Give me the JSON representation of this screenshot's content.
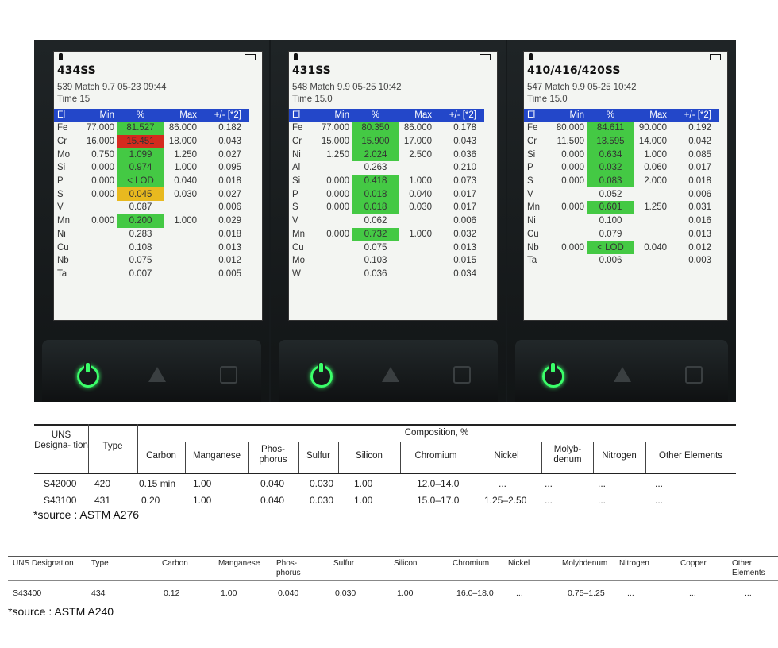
{
  "panels": [
    {
      "alloy": "434SS",
      "match": "539  Match   9.7 05-23 09:44",
      "time": "Time 15",
      "headers": [
        "El",
        "Min",
        "%",
        "Max",
        "+/- [*2]"
      ],
      "rows": [
        {
          "el": "Fe",
          "min": "77.000",
          "pct": "81.527",
          "max": "86.000",
          "err": "0.182",
          "hl": "green"
        },
        {
          "el": "Cr",
          "min": "16.000",
          "pct": "15.451",
          "max": "18.000",
          "err": "0.043",
          "hl": "red"
        },
        {
          "el": "Mo",
          "min": "0.750",
          "pct": "1.099",
          "max": "1.250",
          "err": "0.027",
          "hl": "green"
        },
        {
          "el": "Si",
          "min": "0.000",
          "pct": "0.974",
          "max": "1.000",
          "err": "0.095",
          "hl": "green"
        },
        {
          "el": "P",
          "min": "0.000",
          "pct": "< LOD",
          "max": "0.040",
          "err": "0.018",
          "hl": "green"
        },
        {
          "el": "S",
          "min": "0.000",
          "pct": "0.045",
          "max": "0.030",
          "err": "0.027",
          "hl": "yellow"
        },
        {
          "el": "V",
          "min": "",
          "pct": "0.087",
          "max": "",
          "err": "0.006",
          "hl": ""
        },
        {
          "el": "Mn",
          "min": "0.000",
          "pct": "0.200",
          "max": "1.000",
          "err": "0.029",
          "hl": "green"
        },
        {
          "el": "Ni",
          "min": "",
          "pct": "0.283",
          "max": "",
          "err": "0.018",
          "hl": ""
        },
        {
          "el": "Cu",
          "min": "",
          "pct": "0.108",
          "max": "",
          "err": "0.013",
          "hl": ""
        },
        {
          "el": "Nb",
          "min": "",
          "pct": "0.075",
          "max": "",
          "err": "0.012",
          "hl": ""
        },
        {
          "el": "Ta",
          "min": "",
          "pct": "0.007",
          "max": "",
          "err": "0.005",
          "hl": ""
        }
      ]
    },
    {
      "alloy": "431SS",
      "match": "548  Match   9.9 05-25 10:42",
      "time": "Time 15.0",
      "headers": [
        "El",
        "Min",
        "%",
        "Max",
        "+/- [*2]"
      ],
      "rows": [
        {
          "el": "Fe",
          "min": "77.000",
          "pct": "80.350",
          "max": "86.000",
          "err": "0.178",
          "hl": "green"
        },
        {
          "el": "Cr",
          "min": "15.000",
          "pct": "15.900",
          "max": "17.000",
          "err": "0.043",
          "hl": "green"
        },
        {
          "el": "Ni",
          "min": "1.250",
          "pct": "2.024",
          "max": "2.500",
          "err": "0.036",
          "hl": "green"
        },
        {
          "el": "Al",
          "min": "",
          "pct": "0.263",
          "max": "",
          "err": "0.210",
          "hl": ""
        },
        {
          "el": "Si",
          "min": "0.000",
          "pct": "0.418",
          "max": "1.000",
          "err": "0.073",
          "hl": "green"
        },
        {
          "el": "P",
          "min": "0.000",
          "pct": "0.018",
          "max": "0.040",
          "err": "0.017",
          "hl": "green"
        },
        {
          "el": "S",
          "min": "0.000",
          "pct": "0.018",
          "max": "0.030",
          "err": "0.017",
          "hl": "green"
        },
        {
          "el": "V",
          "min": "",
          "pct": "0.062",
          "max": "",
          "err": "0.006",
          "hl": ""
        },
        {
          "el": "Mn",
          "min": "0.000",
          "pct": "0.732",
          "max": "1.000",
          "err": "0.032",
          "hl": "green"
        },
        {
          "el": "Cu",
          "min": "",
          "pct": "0.075",
          "max": "",
          "err": "0.013",
          "hl": ""
        },
        {
          "el": "Mo",
          "min": "",
          "pct": "0.103",
          "max": "",
          "err": "0.015",
          "hl": ""
        },
        {
          "el": "W",
          "min": "",
          "pct": "0.036",
          "max": "",
          "err": "0.034",
          "hl": ""
        }
      ]
    },
    {
      "alloy": "410/416/420SS",
      "match": "547  Match   9.9 05-25 10:42",
      "time": "Time 15.0",
      "headers": [
        "El",
        "Min",
        "%",
        "Max",
        "+/- [*2]"
      ],
      "rows": [
        {
          "el": "Fe",
          "min": "80.000",
          "pct": "84.611",
          "max": "90.000",
          "err": "0.192",
          "hl": "green"
        },
        {
          "el": "Cr",
          "min": "11.500",
          "pct": "13.595",
          "max": "14.000",
          "err": "0.042",
          "hl": "green"
        },
        {
          "el": "Si",
          "min": "0.000",
          "pct": "0.634",
          "max": "1.000",
          "err": "0.085",
          "hl": "green"
        },
        {
          "el": "P",
          "min": "0.000",
          "pct": "0.032",
          "max": "0.060",
          "err": "0.017",
          "hl": "green"
        },
        {
          "el": "S",
          "min": "0.000",
          "pct": "0.083",
          "max": "2.000",
          "err": "0.018",
          "hl": "green"
        },
        {
          "el": "V",
          "min": "",
          "pct": "0.052",
          "max": "",
          "err": "0.006",
          "hl": ""
        },
        {
          "el": "Mn",
          "min": "0.000",
          "pct": "0.601",
          "max": "1.250",
          "err": "0.031",
          "hl": "green"
        },
        {
          "el": "Ni",
          "min": "",
          "pct": "0.100",
          "max": "",
          "err": "0.016",
          "hl": ""
        },
        {
          "el": "Cu",
          "min": "",
          "pct": "0.079",
          "max": "",
          "err": "0.013",
          "hl": ""
        },
        {
          "el": "Nb",
          "min": "0.000",
          "pct": "< LOD",
          "max": "0.040",
          "err": "0.012",
          "hl": "green"
        },
        {
          "el": "Ta",
          "min": "",
          "pct": "0.006",
          "max": "",
          "err": "0.003",
          "hl": ""
        }
      ]
    }
  ],
  "a276": {
    "h_uns": "UNS Designa- tion",
    "h_type": "Type",
    "h_comp": "Composition, %",
    "cols": [
      "Carbon",
      "Manganese",
      "Phos- phorus",
      "Sulfur",
      "Silicon",
      "Chromium",
      "Nickel",
      "Molyb- denum",
      "Nitrogen",
      "Other Elements"
    ],
    "rows": [
      [
        "S42000",
        "420",
        "0.15 min",
        "1.00",
        "0.040",
        "0.030",
        "1.00",
        "12.0–14.0",
        "...",
        "...",
        "...",
        "..."
      ],
      [
        "S43100",
        "431",
        "0.20",
        "1.00",
        "0.040",
        "0.030",
        "1.00",
        "15.0–17.0",
        "1.25–2.50",
        "...",
        "...",
        "..."
      ]
    ],
    "source": "*source : ASTM A276"
  },
  "a240": {
    "cols": [
      "UNS Designation",
      "Type",
      "Carbon",
      "Manganese",
      "Phos- phorus",
      "Sulfur",
      "Silicon",
      "Chromium",
      "Nickel",
      "Molybdenum",
      "Nitrogen",
      "Copper",
      "Other Elements"
    ],
    "row": [
      "S43400",
      "434",
      "0.12",
      "1.00",
      "0.040",
      "0.030",
      "1.00",
      "16.0–18.0",
      "...",
      "0.75–1.25",
      "...",
      "...",
      "..."
    ],
    "source": "*source : ASTM A240"
  },
  "colors": {
    "header_blue": "#2347c9",
    "pass_green": "#44c944",
    "fail_red": "#d42a1e",
    "warn_yellow": "#e8b91f",
    "power_green": "#3bff6a"
  }
}
